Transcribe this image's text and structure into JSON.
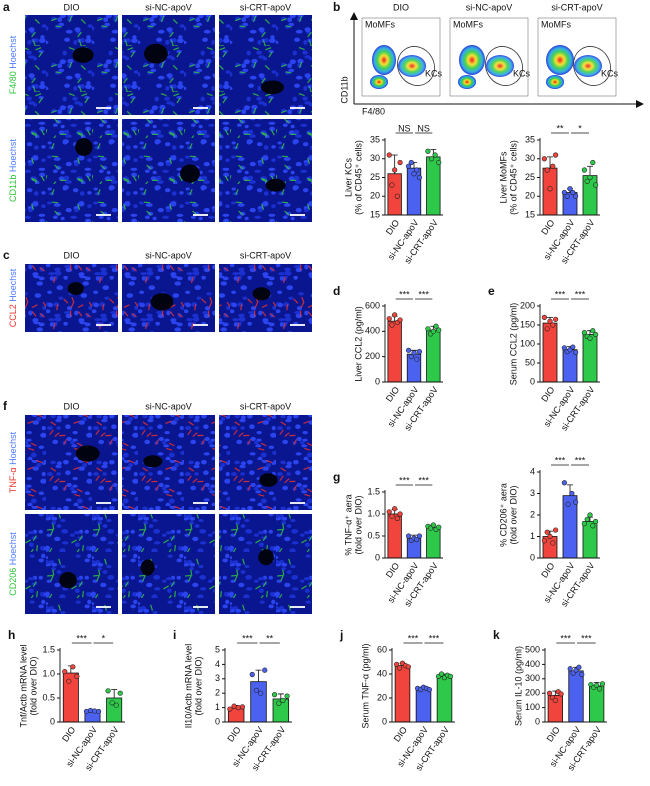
{
  "image_panels": [
    {
      "label": "a",
      "columns": [
        "DIO",
        "si-NC-apoV",
        "si-CRT-apoV"
      ],
      "rows": [
        {
          "marker": "F4/80",
          "stain": "Hoechst",
          "color": "#2fc43a"
        },
        {
          "marker": "CD11b",
          "stain": "Hoechst",
          "color": "#2fc43a"
        }
      ]
    },
    {
      "label": "c",
      "columns": [
        "DIO",
        "si-NC-apoV",
        "si-CRT-apoV"
      ],
      "rows": [
        {
          "marker": "CCL2",
          "stain": "Hoechst",
          "color": "#e8302a"
        }
      ]
    },
    {
      "label": "f",
      "columns": [
        "DIO",
        "si-NC-apoV",
        "si-CRT-apoV"
      ],
      "rows": [
        {
          "marker": "TNF-α",
          "stain": "Hoechst",
          "color": "#e8302a"
        },
        {
          "marker": "CD206",
          "stain": "Hoechst",
          "color": "#2fc43a"
        }
      ]
    }
  ],
  "flow": {
    "label": "b",
    "columns": [
      "DIO",
      "si-NC-apoV",
      "si-CRT-apoV"
    ],
    "gates": [
      "MoMFs",
      "KCs"
    ],
    "y_axis": "CD11b",
    "x_axis": "F4/80"
  },
  "chart_data": [
    {
      "type": "bar",
      "ylabel": [
        "Liver KCs",
        "(% of CD45⁺ cells)"
      ],
      "categories": [
        "DIO",
        "si-NC-apoV",
        "si-CRT-apoV"
      ],
      "colors": [
        "#f0443c",
        "#4b61f0",
        "#2ec94a"
      ],
      "values": [
        26,
        27.5,
        30.5
      ],
      "errors": [
        5,
        1.5,
        2
      ],
      "points": [
        [
          31,
          23,
          27,
          20,
          29
        ],
        [
          28,
          29,
          26,
          27,
          25
        ],
        [
          32,
          30,
          31,
          29
        ]
      ],
      "ylim": [
        15,
        35
      ],
      "yticks": [
        15,
        20,
        25,
        30,
        35
      ],
      "annotations": [
        {
          "text": "NS",
          "between": [
            "DIO",
            "si-NC-apoV"
          ]
        },
        {
          "text": "NS",
          "between": [
            "si-NC-apoV",
            "si-CRT-apoV"
          ]
        }
      ]
    },
    {
      "type": "bar",
      "ylabel": [
        "Liver MoMFs",
        "(% of CD45⁺ cells)"
      ],
      "categories": [
        "DIO",
        "si-NC-apoV",
        "si-CRT-apoV"
      ],
      "colors": [
        "#f0443c",
        "#4b61f0",
        "#2ec94a"
      ],
      "values": [
        27.5,
        21,
        25.5
      ],
      "errors": [
        3,
        1,
        2.5
      ],
      "points": [
        [
          30,
          27,
          22,
          28,
          31
        ],
        [
          21,
          20,
          22,
          21,
          20
        ],
        [
          27,
          24,
          25,
          29,
          23
        ]
      ],
      "ylim": [
        15,
        35
      ],
      "yticks": [
        15,
        20,
        25,
        30,
        35
      ],
      "annotations": [
        {
          "text": "**",
          "between": [
            "DIO",
            "si-NC-apoV"
          ]
        },
        {
          "text": "*",
          "between": [
            "si-NC-apoV",
            "si-CRT-apoV"
          ]
        }
      ]
    },
    {
      "type": "bar",
      "panel": "d",
      "ylabel": [
        "Liver CCL2 (pg/ml)"
      ],
      "categories": [
        "DIO",
        "si-NC-apoV",
        "si-CRT-apoV"
      ],
      "colors": [
        "#f0443c",
        "#4b61f0",
        "#2ec94a"
      ],
      "values": [
        480,
        220,
        410
      ],
      "errors": [
        40,
        30,
        30
      ],
      "points": [
        [
          500,
          450,
          530,
          470,
          490
        ],
        [
          250,
          200,
          230,
          180,
          240
        ],
        [
          420,
          380,
          400,
          440,
          410
        ]
      ],
      "ylim": [
        0,
        600
      ],
      "yticks": [
        0,
        200,
        400,
        600
      ],
      "annotations": [
        {
          "text": "***",
          "between": [
            "DIO",
            "si-NC-apoV"
          ]
        },
        {
          "text": "***",
          "between": [
            "si-NC-apoV",
            "si-CRT-apoV"
          ]
        }
      ]
    },
    {
      "type": "bar",
      "panel": "e",
      "ylabel": [
        "Serum CCL2 (pg/ml)"
      ],
      "categories": [
        "DIO",
        "si-NC-apoV",
        "si-CRT-apoV"
      ],
      "colors": [
        "#f0443c",
        "#4b61f0",
        "#2ec94a"
      ],
      "values": [
        155,
        85,
        125
      ],
      "errors": [
        15,
        8,
        10
      ],
      "points": [
        [
          170,
          140,
          160,
          150,
          165
        ],
        [
          90,
          80,
          85,
          92,
          78
        ],
        [
          130,
          120,
          115,
          135,
          125
        ]
      ],
      "ylim": [
        0,
        200
      ],
      "yticks": [
        0,
        50,
        100,
        150,
        200
      ],
      "annotations": [
        {
          "text": "***",
          "between": [
            "DIO",
            "si-NC-apoV"
          ]
        },
        {
          "text": "***",
          "between": [
            "si-NC-apoV",
            "si-CRT-apoV"
          ]
        }
      ]
    },
    {
      "type": "bar",
      "panel": "g",
      "ylabel": [
        "% TNF-α⁺ aera",
        "(fold over DIO)"
      ],
      "categories": [
        "DIO",
        "si-NC-apoV",
        "si-CRT-apoV"
      ],
      "colors": [
        "#f0443c",
        "#4b61f0",
        "#2ec94a"
      ],
      "values": [
        1.0,
        0.45,
        0.7
      ],
      "errors": [
        0.1,
        0.07,
        0.05
      ],
      "points": [
        [
          1.05,
          0.95,
          1.12,
          0.9,
          1.0
        ],
        [
          0.5,
          0.4,
          0.45,
          0.42,
          0.5
        ],
        [
          0.72,
          0.68,
          0.75,
          0.65,
          0.7
        ]
      ],
      "ylim": [
        0,
        1.5
      ],
      "yticks": [
        0,
        0.5,
        {
          "value": 1,
          "label": "1.0"
        },
        1.5
      ],
      "annotations": [
        {
          "text": "***",
          "between": [
            "DIO",
            "si-NC-apoV"
          ]
        },
        {
          "text": "***",
          "between": [
            "si-NC-apoV",
            "si-CRT-apoV"
          ]
        }
      ]
    },
    {
      "type": "bar",
      "ylabel": [
        "% CD206⁺ aera",
        "(fold over DIO)"
      ],
      "categories": [
        "DIO",
        "si-NC-apoV",
        "si-CRT-apoV"
      ],
      "colors": [
        "#f0443c",
        "#4b61f0",
        "#2ec94a"
      ],
      "values": [
        1.0,
        2.9,
        1.7
      ],
      "errors": [
        0.25,
        0.5,
        0.2
      ],
      "points": [
        [
          0.8,
          1.2,
          1.0,
          0.7,
          1.3
        ],
        [
          3.5,
          2.5,
          3.0,
          2.6
        ],
        [
          1.6,
          1.8,
          2.0,
          1.5,
          1.7
        ]
      ],
      "ylim": [
        0,
        4
      ],
      "yticks": [
        0,
        1,
        2,
        3,
        4
      ],
      "annotations": [
        {
          "text": "***",
          "between": [
            "DIO",
            "si-NC-apoV"
          ]
        },
        {
          "text": "***",
          "between": [
            "si-NC-apoV",
            "si-CRT-apoV"
          ]
        }
      ]
    },
    {
      "type": "bar",
      "panel": "h",
      "ylabel": [
        "Tnf/Actb mRNA level",
        "(fold over DIO)"
      ],
      "categories": [
        "DIO",
        "si-NC-apoV",
        "si-CRT-apoV"
      ],
      "colors": [
        "#f0443c",
        "#4b61f0",
        "#2ec94a"
      ],
      "values": [
        1.02,
        0.23,
        0.5
      ],
      "errors": [
        0.15,
        0.02,
        0.18
      ],
      "points": [
        [
          1.05,
          0.85,
          1.15,
          0.95
        ],
        [
          0.22,
          0.24,
          0.23,
          0.22
        ],
        [
          0.65,
          0.4,
          0.35,
          0.6
        ]
      ],
      "ylim": [
        0,
        1.5
      ],
      "yticks": [
        0,
        0.5,
        {
          "value": 1,
          "label": "1.0"
        },
        1.5
      ],
      "annotations": [
        {
          "text": "***",
          "between": [
            "DIO",
            "si-NC-apoV"
          ]
        },
        {
          "text": "*",
          "between": [
            "si-NC-apoV",
            "si-CRT-apoV"
          ]
        }
      ]
    },
    {
      "type": "bar",
      "panel": "i",
      "ylabel": [
        "Il10/Actb mRNA level",
        "(fold over DIO)"
      ],
      "categories": [
        "DIO",
        "si-NC-apoV",
        "si-CRT-apoV"
      ],
      "colors": [
        "#f0443c",
        "#4b61f0",
        "#2ec94a"
      ],
      "values": [
        1.0,
        2.8,
        1.6
      ],
      "errors": [
        0.15,
        0.8,
        0.35
      ],
      "points": [
        [
          0.9,
          1.1,
          1.0,
          1.05
        ],
        [
          3.3,
          2.2,
          2.0,
          3.6
        ],
        [
          1.9,
          1.3,
          1.5,
          1.8
        ]
      ],
      "ylim": [
        0,
        5
      ],
      "yticks": [
        0,
        1,
        2,
        3,
        4,
        5
      ],
      "annotations": [
        {
          "text": "***",
          "between": [
            "DIO",
            "si-NC-apoV"
          ]
        },
        {
          "text": "**",
          "between": [
            "si-NC-apoV",
            "si-CRT-apoV"
          ]
        }
      ]
    },
    {
      "type": "bar",
      "panel": "j",
      "ylabel": [
        "Serum TNF-α (pg/ml)"
      ],
      "categories": [
        "DIO",
        "si-NC-apoV",
        "si-CRT-apoV"
      ],
      "colors": [
        "#f0443c",
        "#4b61f0",
        "#2ec94a"
      ],
      "values": [
        47,
        28,
        38
      ],
      "errors": [
        2,
        1.5,
        2
      ],
      "points": [
        [
          48,
          45,
          49,
          47,
          46
        ],
        [
          28,
          27,
          29,
          28,
          27
        ],
        [
          38,
          40,
          37,
          39,
          38
        ]
      ],
      "ylim": [
        0,
        60
      ],
      "yticks": [
        0,
        20,
        40,
        60
      ],
      "annotations": [
        {
          "text": "***",
          "between": [
            "DIO",
            "si-NC-apoV"
          ]
        },
        {
          "text": "***",
          "between": [
            "si-NC-apoV",
            "si-CRT-apoV"
          ]
        }
      ]
    },
    {
      "type": "bar",
      "panel": "k",
      "ylabel": [
        "Serum IL-10 (pg/ml)"
      ],
      "categories": [
        "DIO",
        "si-NC-apoV",
        "si-CRT-apoV"
      ],
      "colors": [
        "#f0443c",
        "#4b61f0",
        "#2ec94a"
      ],
      "values": [
        185,
        355,
        250
      ],
      "errors": [
        30,
        25,
        25
      ],
      "points": [
        [
          200,
          170,
          150,
          210,
          195
        ],
        [
          370,
          340,
          360,
          380,
          330
        ],
        [
          260,
          240,
          255,
          230,
          265
        ]
      ],
      "ylim": [
        0,
        500
      ],
      "yticks": [
        0,
        100,
        200,
        300,
        400,
        500
      ],
      "annotations": [
        {
          "text": "***",
          "between": [
            "DIO",
            "si-NC-apoV"
          ]
        },
        {
          "text": "***",
          "between": [
            "si-NC-apoV",
            "si-CRT-apoV"
          ]
        }
      ]
    }
  ]
}
